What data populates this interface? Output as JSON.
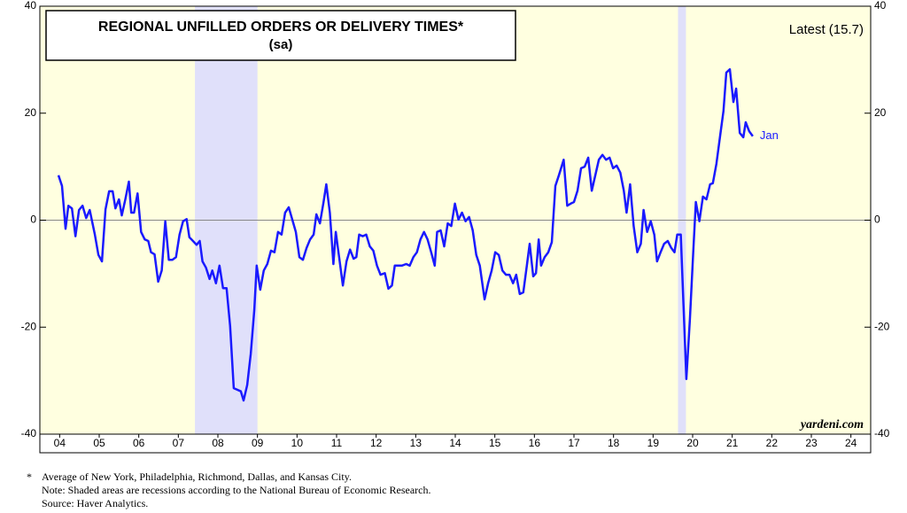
{
  "chart_data": {
    "type": "line",
    "title": "REGIONAL UNFILLED ORDERS OR DELIVERY TIMES*",
    "subtitle": "(sa)",
    "annotations": {
      "latest": "Latest (15.7)",
      "last_label": "Jan",
      "source_mark": "yardeni.com"
    },
    "footnote_marker": "*",
    "footnotes": [
      "Average of New York, Philadelphia, Richmond, Dallas, and Kansas City.",
      "Note: Shaded areas are recessions according to the National Bureau of Economic Research.",
      "Source: Haver Analytics."
    ],
    "color": "#1a1aff",
    "recession_color": "#e0e0fa",
    "recessions": [
      {
        "start": 2007.92,
        "end": 2009.5
      },
      {
        "start": 2020.13,
        "end": 2020.33
      }
    ],
    "xlim": [
      2004,
      2025
    ],
    "xticks": [
      {
        "value": 2004.5,
        "label": "04"
      },
      {
        "value": 2005.5,
        "label": "05"
      },
      {
        "value": 2006.5,
        "label": "06"
      },
      {
        "value": 2007.5,
        "label": "07"
      },
      {
        "value": 2008.5,
        "label": "08"
      },
      {
        "value": 2009.5,
        "label": "09"
      },
      {
        "value": 2010.5,
        "label": "10"
      },
      {
        "value": 2011.5,
        "label": "11"
      },
      {
        "value": 2012.5,
        "label": "12"
      },
      {
        "value": 2013.5,
        "label": "13"
      },
      {
        "value": 2014.5,
        "label": "14"
      },
      {
        "value": 2015.5,
        "label": "15"
      },
      {
        "value": 2016.5,
        "label": "16"
      },
      {
        "value": 2017.5,
        "label": "17"
      },
      {
        "value": 2018.5,
        "label": "18"
      },
      {
        "value": 2019.5,
        "label": "19"
      },
      {
        "value": 2020.5,
        "label": "20"
      },
      {
        "value": 2021.5,
        "label": "21"
      },
      {
        "value": 2022.5,
        "label": "22"
      },
      {
        "value": 2023.5,
        "label": "23"
      },
      {
        "value": 2024.5,
        "label": "24"
      }
    ],
    "ylim": [
      -40,
      40
    ],
    "yticks": [
      -40,
      -20,
      0,
      20,
      40
    ],
    "y2lim": [
      -40,
      40
    ],
    "y2ticks": [
      -40,
      -20,
      0,
      20,
      40
    ],
    "zero_line": true,
    "x": [
      2004.47,
      2004.56,
      2004.65,
      2004.72,
      2004.81,
      2004.9,
      2004.99,
      2005.08,
      2005.17,
      2005.26,
      2005.39,
      2005.48,
      2005.57,
      2005.66,
      2005.75,
      2005.84,
      2005.91,
      2006.0,
      2006.07,
      2006.16,
      2006.25,
      2006.31,
      2006.38,
      2006.47,
      2006.56,
      2006.65,
      2006.74,
      2006.81,
      2006.9,
      2006.99,
      2007.08,
      2007.17,
      2007.26,
      2007.35,
      2007.44,
      2007.53,
      2007.62,
      2007.71,
      2007.78,
      2007.87,
      2007.96,
      2008.04,
      2008.11,
      2008.2,
      2008.29,
      2008.36,
      2008.45,
      2008.54,
      2008.63,
      2008.72,
      2008.81,
      2008.9,
      2008.99,
      2009.08,
      2009.15,
      2009.24,
      2009.33,
      2009.42,
      2009.48,
      2009.57,
      2009.66,
      2009.75,
      2009.84,
      2009.93,
      2010.02,
      2010.11,
      2010.2,
      2010.29,
      2010.38,
      2010.47,
      2010.56,
      2010.65,
      2010.74,
      2010.83,
      2010.92,
      2010.99,
      2011.08,
      2011.17,
      2011.24,
      2011.33,
      2011.42,
      2011.48,
      2011.57,
      2011.66,
      2011.75,
      2011.84,
      2011.93,
      2012.0,
      2012.07,
      2012.16,
      2012.25,
      2012.34,
      2012.43,
      2012.52,
      2012.61,
      2012.72,
      2012.81,
      2012.9,
      2012.97,
      2013.06,
      2013.15,
      2013.26,
      2013.35,
      2013.44,
      2013.53,
      2013.62,
      2013.71,
      2013.8,
      2013.89,
      2013.98,
      2014.04,
      2014.13,
      2014.22,
      2014.31,
      2014.4,
      2014.49,
      2014.58,
      2014.67,
      2014.76,
      2014.85,
      2014.94,
      2015.03,
      2015.12,
      2015.24,
      2015.33,
      2015.42,
      2015.51,
      2015.6,
      2015.69,
      2015.78,
      2015.87,
      2015.96,
      2016.04,
      2016.13,
      2016.22,
      2016.31,
      2016.38,
      2016.47,
      2016.54,
      2016.61,
      2016.67,
      2016.76,
      2016.85,
      2016.94,
      2017.03,
      2017.12,
      2017.24,
      2017.33,
      2017.42,
      2017.5,
      2017.59,
      2017.68,
      2017.77,
      2017.86,
      2017.95,
      2018.04,
      2018.13,
      2018.22,
      2018.31,
      2018.4,
      2018.49,
      2018.58,
      2018.67,
      2018.76,
      2018.83,
      2018.92,
      2019.01,
      2019.1,
      2019.19,
      2019.26,
      2019.35,
      2019.44,
      2019.53,
      2019.6,
      2019.69,
      2019.78,
      2019.87,
      2019.96,
      2020.04,
      2020.11,
      2020.2,
      2020.27,
      2020.34,
      2020.43,
      2020.52,
      2020.58,
      2020.67,
      2020.76,
      2020.85,
      2020.94,
      2021.01,
      2021.1,
      2021.19,
      2021.28,
      2021.35,
      2021.44,
      2021.53,
      2021.6,
      2021.69,
      2021.78,
      2021.84,
      2021.93,
      2022.02
    ],
    "values": [
      8.4,
      6.4,
      -1.6,
      2.7,
      2.2,
      -3,
      1.9,
      2.7,
      0.4,
      1.9,
      -2.7,
      -6.5,
      -7.7,
      2,
      5.4,
      5.4,
      2.2,
      3.9,
      0.9,
      3.9,
      7.2,
      1.4,
      1.4,
      5,
      -2.2,
      -3.6,
      -3.9,
      -6,
      -6.4,
      -11.5,
      -9.4,
      -0.2,
      -7.4,
      -7.4,
      -6.9,
      -2.7,
      -0.2,
      0.2,
      -3.2,
      -3.9,
      -4.6,
      -3.9,
      -7.7,
      -8.9,
      -11,
      -9.4,
      -11.8,
      -8.5,
      -12.7,
      -12.7,
      -19.8,
      -31.4,
      -31.7,
      -32,
      -33.7,
      -30.8,
      -25,
      -16.8,
      -8.5,
      -13,
      -9.4,
      -8.2,
      -5.7,
      -6,
      -2.2,
      -2.7,
      1.4,
      2.4,
      0.1,
      -2.2,
      -6.9,
      -7.4,
      -5.2,
      -3.6,
      -2.7,
      1.1,
      -0.6,
      3.4,
      6.7,
      1.4,
      -8.2,
      -2.2,
      -7.2,
      -12.2,
      -7.7,
      -5.5,
      -7.2,
      -6.9,
      -2.7,
      -3,
      -2.7,
      -4.9,
      -5.7,
      -8.5,
      -10.2,
      -9.9,
      -12.8,
      -12.2,
      -8.5,
      -8.5,
      -8.5,
      -8.2,
      -8.5,
      -6.9,
      -6,
      -3.6,
      -2.2,
      -3.6,
      -6,
      -8.5,
      -2.2,
      -1.9,
      -4.9,
      -0.6,
      -1.1,
      3.1,
      0.1,
      1.4,
      -0.2,
      0.6,
      -1.9,
      -6.5,
      -8.5,
      -14.8,
      -11.8,
      -9.4,
      -6,
      -6.5,
      -9.4,
      -10.2,
      -10.2,
      -11.8,
      -10.2,
      -13.8,
      -13.5,
      -8.5,
      -4.4,
      -10.5,
      -9.9,
      -3.6,
      -8.5,
      -6.9,
      -6,
      -4.1,
      6.4,
      8.4,
      11.3,
      2.7,
      3.1,
      3.4,
      5.5,
      9.7,
      10,
      11.7,
      5.5,
      8.4,
      11.3,
      12.2,
      11.3,
      11.7,
      9.7,
      10.2,
      8.9,
      5.5,
      1.4,
      6.7,
      -1.1,
      -6,
      -4.4,
      1.9,
      -2.2,
      -0.2,
      -2.7,
      -7.7,
      -6,
      -4.4,
      -3.9,
      -5.2,
      -6,
      -2.7,
      -2.7,
      -16,
      -29.7,
      -18.5,
      -5.2,
      3.4,
      -0.2,
      4.4,
      3.9,
      6.7,
      6.9,
      10.5,
      15.5,
      20.4,
      27.6,
      28.2,
      22.1,
      24.6,
      16.3,
      15.5,
      18.3,
      16.6,
      15.7
    ]
  }
}
